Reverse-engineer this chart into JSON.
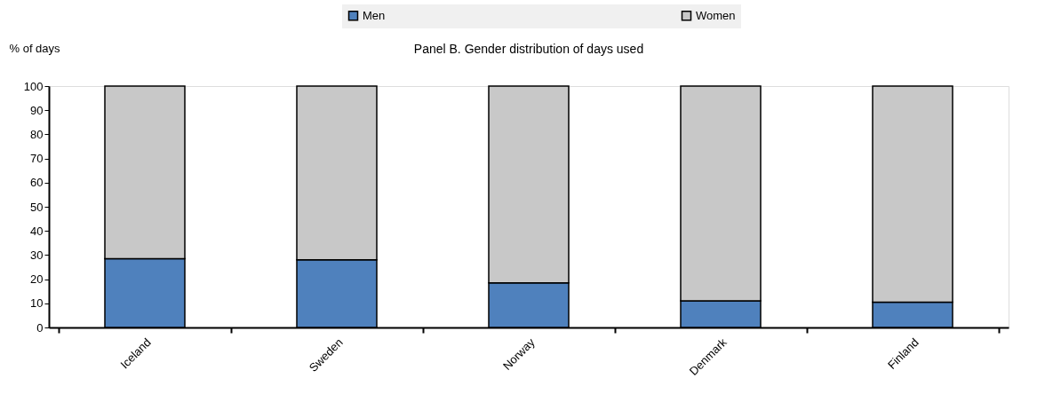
{
  "chart_data": {
    "type": "bar",
    "stacked": true,
    "title": "Panel B. Gender distribution of days used",
    "ylabel": "% of days",
    "categories": [
      "Iceland",
      "Sweden",
      "Norway",
      "Denmark",
      "Finland"
    ],
    "series": [
      {
        "name": "Men",
        "color": "#4f81bd",
        "values": [
          28.5,
          28,
          18.5,
          11,
          10.5
        ]
      },
      {
        "name": "Women",
        "color": "#c8c8c8",
        "values": [
          71.5,
          72,
          81.5,
          89,
          89.5
        ]
      }
    ],
    "ylim": [
      0,
      100
    ],
    "yticks": [
      0,
      10,
      20,
      30,
      40,
      50,
      60,
      70,
      80,
      90,
      100
    ],
    "grid": false,
    "legend": "top"
  }
}
